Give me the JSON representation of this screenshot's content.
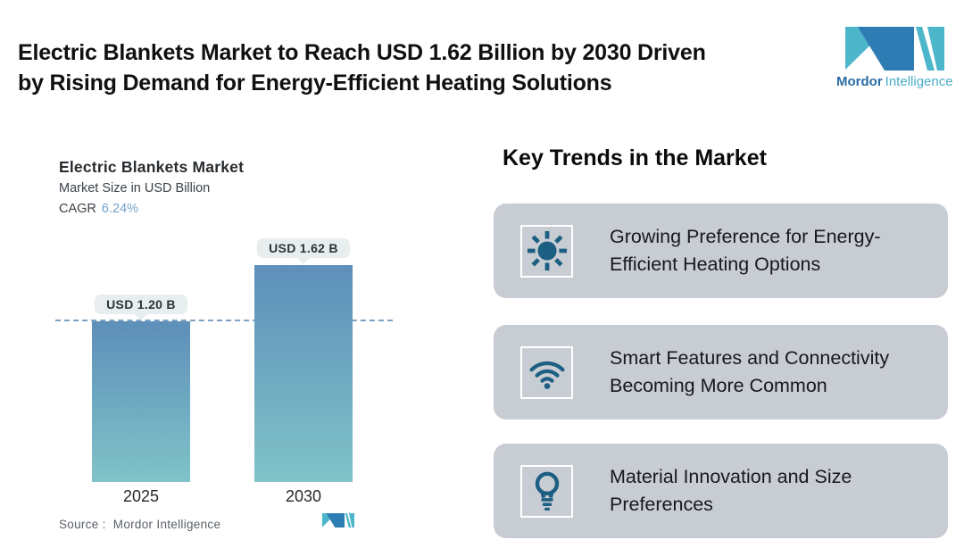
{
  "header": {
    "title_line1": "Electric Blankets Market to Reach USD 1.62 Billion by 2030 Driven",
    "title_line2": "by Rising Demand for Energy-Efficient Heating Solutions",
    "brand": {
      "name_bold": "Mordor",
      "name_light": "Intelligence"
    }
  },
  "chart_data": {
    "type": "bar",
    "title": "Electric Blankets Market",
    "subtitle": "Market Size in USD Billion",
    "cagr_label": "CAGR",
    "cagr_value": "6.24%",
    "categories": [
      "2025",
      "2030"
    ],
    "values": [
      1.2,
      1.62
    ],
    "value_labels": [
      "USD 1.20 B",
      "USD 1.62 B"
    ],
    "ylabel": "Market Size in USD Billion",
    "ylim": [
      0,
      1.9
    ],
    "reference_line": 1.2,
    "grid": "off",
    "legend": "none",
    "bar_gradient": [
      "#5d8fba",
      "#80c3c8"
    ],
    "source": "Source :  Mordor Intelligence"
  },
  "trends": {
    "heading": "Key Trends in the Market",
    "items": [
      {
        "icon": "sun-icon",
        "text": "Growing Preference for Energy-Efficient Heating Options"
      },
      {
        "icon": "wifi-icon",
        "text": "Smart Features and Connectivity Becoming More Common"
      },
      {
        "icon": "lightbulb-icon",
        "text": "Material Innovation and Size Preferences"
      }
    ]
  },
  "colors": {
    "accent_icon_blue": "#1d5e83",
    "card_gray": "#c8cdd3",
    "cagr_blue": "#74a3cc",
    "dashed_line": "#7ba1c4",
    "pill_bg": "#e8edee",
    "logo_blue": "#2e7cb4",
    "logo_teal": "#4db6cb"
  }
}
